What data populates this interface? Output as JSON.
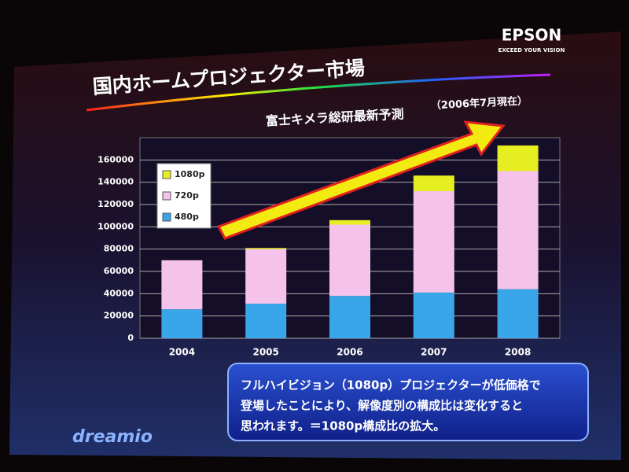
{
  "chart_data": {
    "type": "stacked_bar",
    "title": "国内ホームプロジェクター市場",
    "subtitle": "富士キメラ総研最新予測",
    "subtitle_date": "（2006年7月現在）",
    "brand": "EPSON",
    "brand_tagline": "EXCEED YOUR VISION",
    "product": "dreamio",
    "note": [
      "フルハイビジョン（1080p）プロジェクターが低価格で",
      "登場したことにより、解像度別の構成比は変化すると",
      "思われます。＝1080p構成比の拡大。"
    ],
    "categories": [
      "2004",
      "2005",
      "2006",
      "2007",
      "2008"
    ],
    "series": [
      {
        "name": "480p",
        "color": "#3aa6ea",
        "values": [
          26000,
          31000,
          38000,
          41000,
          44000
        ]
      },
      {
        "name": "720p",
        "color": "#f4c2ea",
        "values": [
          44000,
          49000,
          64000,
          91000,
          106000
        ]
      },
      {
        "name": "1080p",
        "color": "#e6ee22",
        "values": [
          0,
          1000,
          4000,
          14000,
          23000
        ]
      }
    ],
    "ylim": [
      0,
      180000
    ],
    "yticks": [
      0,
      20000,
      40000,
      60000,
      80000,
      100000,
      120000,
      140000,
      160000
    ],
    "grid": true
  }
}
